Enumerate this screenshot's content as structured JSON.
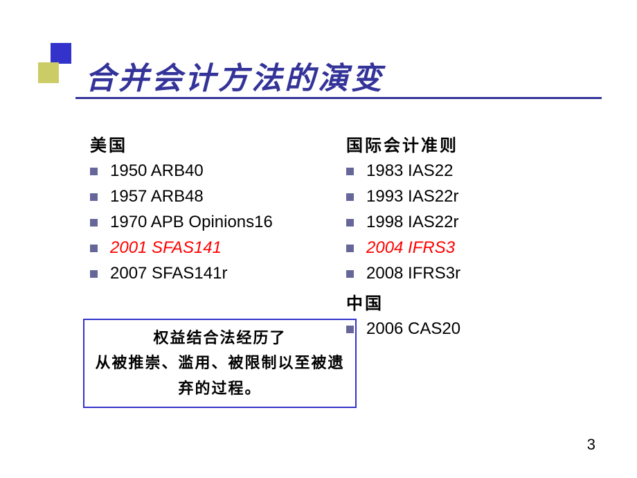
{
  "title": "合并会计方法的演变",
  "left_column": {
    "header": "美国",
    "items": [
      {
        "text": "1950 ARB40",
        "highlighted": false
      },
      {
        "text": "1957 ARB48",
        "highlighted": false
      },
      {
        "text": "1970 APB Opinions16",
        "highlighted": false
      },
      {
        "text": "2001 SFAS141",
        "highlighted": true
      },
      {
        "text": "2007 SFAS141r",
        "highlighted": false
      }
    ]
  },
  "right_column": {
    "sections": [
      {
        "header": "国际会计准则",
        "items": [
          {
            "text": "1983 IAS22",
            "highlighted": false
          },
          {
            "text": "1993 IAS22r",
            "highlighted": false
          },
          {
            "text": "1998 IAS22r",
            "highlighted": false
          },
          {
            "text": "2004 IFRS3",
            "highlighted": true
          },
          {
            "text": "2008 IFRS3r",
            "highlighted": false
          }
        ]
      },
      {
        "header": "中国",
        "items": [
          {
            "text": "2006 CAS20",
            "highlighted": false
          }
        ]
      }
    ]
  },
  "summary": {
    "line1": "权益结合法经历了",
    "line2": "从被推崇、滥用、被限制以至被遗弃的过程。"
  },
  "page_number": "3",
  "colors": {
    "title_color": "#333399",
    "square_primary": "#3333cc",
    "square_secondary": "#cccc66",
    "bullet_color": "#666699",
    "highlight_color": "#ff0000",
    "box_border": "#3333cc",
    "text_color": "#000000",
    "background": "#ffffff"
  }
}
